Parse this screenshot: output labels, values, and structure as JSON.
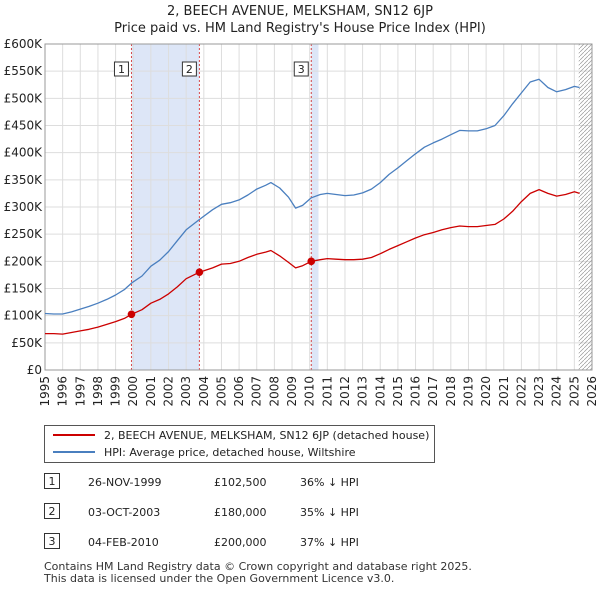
{
  "title_line1": "2, BEECH AVENUE, MELKSHAM, SN12 6JP",
  "title_line2": "Price paid vs. HM Land Registry's House Price Index (HPI)",
  "colors": {
    "property": "#cc0000",
    "hpi": "#4a7fbf",
    "shade": "#dde6f7",
    "grid": "#dddddd",
    "vline": "#cc0000"
  },
  "chart_data": {
    "type": "line",
    "title": "2, BEECH AVENUE, MELKSHAM, SN12 6JP",
    "subtitle": "Price paid vs. HM Land Registry's House Price Index (HPI)",
    "xlabel": "",
    "ylabel": "",
    "xlim": [
      1995,
      2026
    ],
    "ylim": [
      0,
      600000
    ],
    "y_ticks": [
      0,
      50000,
      100000,
      150000,
      200000,
      250000,
      300000,
      350000,
      400000,
      450000,
      500000,
      550000,
      600000
    ],
    "y_tick_labels": [
      "£0",
      "£50K",
      "£100K",
      "£150K",
      "£200K",
      "£250K",
      "£300K",
      "£350K",
      "£400K",
      "£450K",
      "£500K",
      "£550K",
      "£600K"
    ],
    "x_ticks": [
      1995,
      1996,
      1997,
      1998,
      1999,
      2000,
      2001,
      2002,
      2003,
      2004,
      2005,
      2006,
      2007,
      2008,
      2009,
      2010,
      2011,
      2012,
      2013,
      2014,
      2015,
      2016,
      2017,
      2018,
      2019,
      2020,
      2021,
      2022,
      2023,
      2024,
      2025,
      2026
    ],
    "x_tick_labels": [
      "1995",
      "1996",
      "1997",
      "1998",
      "1999",
      "2000",
      "2001",
      "2002",
      "2003",
      "2004",
      "2005",
      "2006",
      "2007",
      "2008",
      "2009",
      "2010",
      "2011",
      "2012",
      "2013",
      "2014",
      "2015",
      "2016",
      "2017",
      "2018",
      "2019",
      "2020",
      "2021",
      "2022",
      "2023",
      "2024",
      "2025",
      "2026"
    ],
    "grid": true,
    "shaded_ranges": [
      [
        1999.9,
        2003.75
      ],
      [
        2010.09,
        2010.5
      ]
    ],
    "future_hatch_from": 2025.25,
    "series": [
      {
        "name": "2, BEECH AVENUE, MELKSHAM, SN12 6JP (detached house)",
        "color": "#cc0000",
        "x": [
          1995,
          1995.5,
          1996,
          1996.5,
          1997,
          1997.5,
          1998,
          1998.5,
          1999,
          1999.5,
          1999.9,
          2000.5,
          2001,
          2001.5,
          2002,
          2002.5,
          2003,
          2003.75,
          2004.5,
          2005,
          2005.5,
          2006,
          2006.5,
          2007,
          2007.5,
          2007.8,
          2008.3,
          2008.8,
          2009.2,
          2009.6,
          2010.09,
          2010.6,
          2011,
          2011.5,
          2012,
          2012.5,
          2013,
          2013.5,
          2014,
          2014.5,
          2015,
          2015.5,
          2016,
          2016.5,
          2017,
          2017.5,
          2018,
          2018.5,
          2019,
          2019.5,
          2020,
          2020.5,
          2021,
          2021.5,
          2022,
          2022.5,
          2023,
          2023.5,
          2024,
          2024.5,
          2025,
          2025.3
        ],
        "values": [
          67000,
          67000,
          66000,
          69000,
          72000,
          75000,
          79000,
          84000,
          89000,
          95000,
          102500,
          111000,
          123000,
          130000,
          140000,
          153000,
          168000,
          180000,
          188000,
          195000,
          196000,
          200000,
          207000,
          213000,
          217000,
          220000,
          210000,
          198000,
          188000,
          192000,
          200000,
          203000,
          205000,
          204000,
          203000,
          203000,
          204000,
          207000,
          214000,
          222000,
          229000,
          236000,
          243000,
          249000,
          253000,
          258000,
          262000,
          265000,
          264000,
          264000,
          266000,
          268000,
          278000,
          292000,
          310000,
          325000,
          332000,
          325000,
          320000,
          323000,
          328000,
          325000
        ]
      },
      {
        "name": "HPI: Average price, detached house, Wiltshire",
        "color": "#4a7fbf",
        "x": [
          1995,
          1995.5,
          1996,
          1996.5,
          1997,
          1997.5,
          1998,
          1998.5,
          1999,
          1999.5,
          1999.9,
          2000.5,
          2001,
          2001.5,
          2002,
          2002.5,
          2003,
          2003.75,
          2004.5,
          2005,
          2005.5,
          2006,
          2006.5,
          2007,
          2007.5,
          2007.8,
          2008.3,
          2008.8,
          2009.2,
          2009.6,
          2010.09,
          2010.6,
          2011,
          2011.5,
          2012,
          2012.5,
          2013,
          2013.5,
          2014,
          2014.5,
          2015,
          2015.5,
          2016,
          2016.5,
          2017,
          2017.5,
          2018,
          2018.5,
          2019,
          2019.5,
          2020,
          2020.5,
          2021,
          2021.5,
          2022,
          2022.5,
          2023,
          2023.5,
          2024,
          2024.5,
          2025,
          2025.3
        ],
        "values": [
          104000,
          103000,
          103000,
          107000,
          112000,
          117000,
          123000,
          130000,
          138000,
          148000,
          160000,
          173000,
          191000,
          202000,
          218000,
          238000,
          258000,
          277000,
          295000,
          305000,
          308000,
          313000,
          322000,
          333000,
          340000,
          345000,
          335000,
          318000,
          298000,
          303000,
          317000,
          323000,
          325000,
          323000,
          321000,
          322000,
          326000,
          333000,
          345000,
          360000,
          372000,
          385000,
          398000,
          410000,
          418000,
          425000,
          433000,
          441000,
          440000,
          440000,
          444000,
          450000,
          468000,
          490000,
          510000,
          530000,
          535000,
          520000,
          512000,
          516000,
          522000,
          520000
        ]
      }
    ],
    "sale_markers": [
      {
        "label": "1",
        "x": 1999.9,
        "value": 102500
      },
      {
        "label": "2",
        "x": 2003.75,
        "value": 180000
      },
      {
        "label": "3",
        "x": 2010.09,
        "value": 200000
      }
    ]
  },
  "legend": {
    "property_label": "2, BEECH AVENUE, MELKSHAM, SN12 6JP (detached house)",
    "hpi_label": "HPI: Average price, detached house, Wiltshire"
  },
  "sales": [
    {
      "num": "1",
      "date": "26-NOV-1999",
      "price": "£102,500",
      "hpi": "36% ↓ HPI"
    },
    {
      "num": "2",
      "date": "03-OCT-2003",
      "price": "£180,000",
      "hpi": "35% ↓ HPI"
    },
    {
      "num": "3",
      "date": "04-FEB-2010",
      "price": "£200,000",
      "hpi": "37% ↓ HPI"
    }
  ],
  "footer": {
    "line1": "Contains HM Land Registry data © Crown copyright and database right 2025.",
    "line2": "This data is licensed under the Open Government Licence v3.0."
  }
}
